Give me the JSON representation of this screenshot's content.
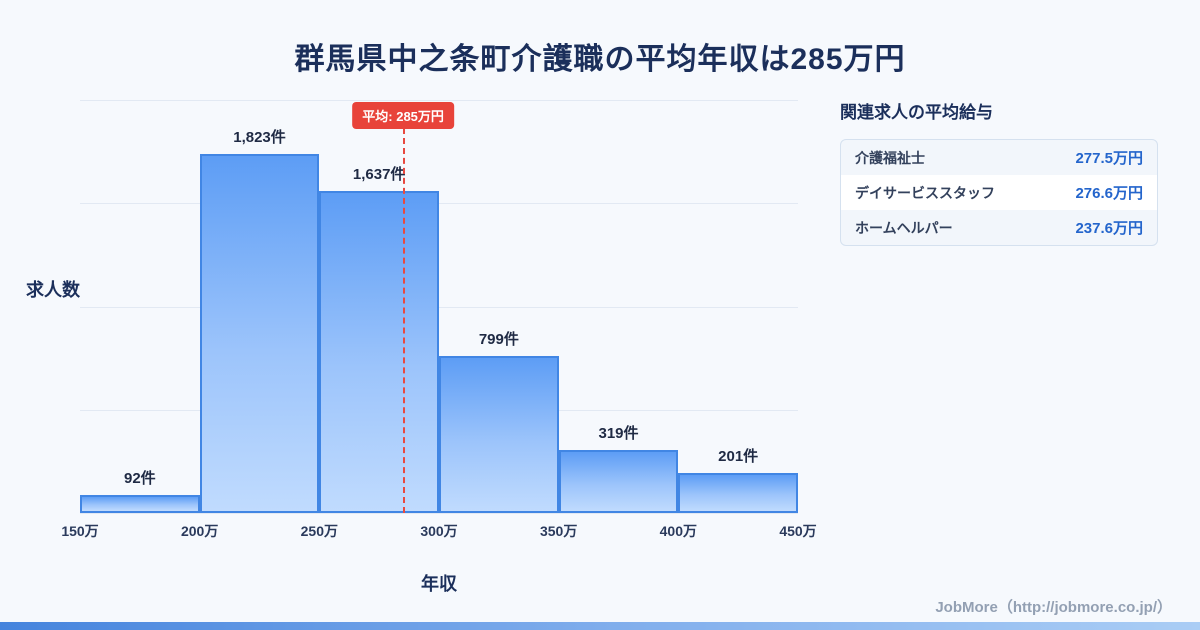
{
  "page": {
    "title": "群馬県中之条町介護職の平均年収は285万円",
    "footer": "JobMore（http://jobmore.co.jp/）"
  },
  "chart_data": {
    "type": "bar",
    "title": "群馬県中之条町介護職の平均年収は285万円",
    "xlabel": "年収",
    "ylabel": "求人数",
    "categories": [
      "150万-200万",
      "200万-250万",
      "250万-300万",
      "300万-350万",
      "350万-400万",
      "400万-450万"
    ],
    "bin_edge_labels": [
      "150万",
      "200万",
      "250万",
      "300万",
      "350万",
      "400万",
      "450万"
    ],
    "values": [
      92,
      1823,
      1637,
      799,
      319,
      201
    ],
    "value_labels": [
      "92件",
      "1,823件",
      "1,637件",
      "799件",
      "319件",
      "201件"
    ],
    "x_range": [
      150,
      450
    ],
    "ylim": [
      0,
      2100
    ],
    "grid": true,
    "average": {
      "value": 285,
      "label": "平均: 285万円",
      "line_color": "#e8493f"
    }
  },
  "side_panel": {
    "heading": "関連求人の平均給与",
    "rows": [
      {
        "label": "介護福祉士",
        "value": "277.5万円"
      },
      {
        "label": "デイサービススタッフ",
        "value": "276.6万円"
      },
      {
        "label": "ホームヘルパー",
        "value": "237.6万円"
      }
    ]
  },
  "colors": {
    "background": "#f6f9fd",
    "title_navy": "#1b2f5b",
    "bar_fill_top": "#5d9df5",
    "bar_fill_bottom": "#c0dbfe",
    "bar_border": "#4186e4",
    "average_red": "#e8433a",
    "value_blue": "#2465cc",
    "footer_gray": "#93a0b3"
  }
}
